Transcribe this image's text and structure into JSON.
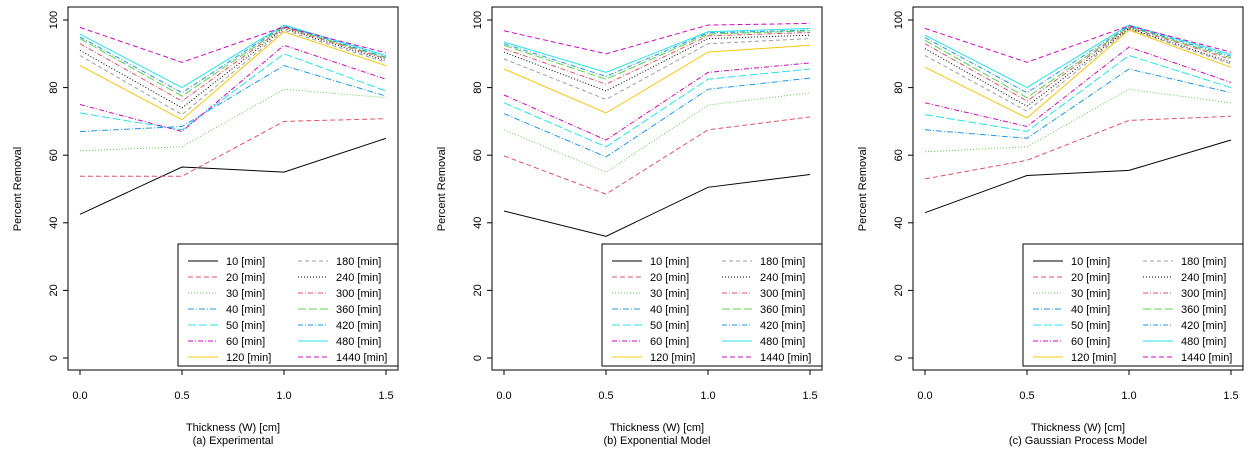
{
  "chart_data": [
    {
      "type": "line",
      "caption": "(a) Experimental",
      "xlabel": "Thickness (W) [cm]",
      "ylabel": "Percent Removal",
      "x": [
        0.0,
        0.5,
        1.0,
        1.5
      ],
      "x_ticks": [
        "0.0",
        "0.5",
        "1.0",
        "1.5"
      ],
      "y_ticks": [
        "0",
        "20",
        "40",
        "60",
        "80",
        "100"
      ],
      "xlim": [
        0,
        1.5
      ],
      "ylim": [
        0,
        100
      ],
      "legend_position": "bottom-right",
      "series": [
        {
          "name": "10 [min]",
          "values": [
            42.5,
            56.5,
            55.0,
            65.0
          ],
          "color": "#000000"
        },
        {
          "name": "20 [min]",
          "values": [
            53.8,
            53.8,
            70.0,
            70.8
          ],
          "color": "#DF536B"
        },
        {
          "name": "30 [min]",
          "values": [
            61.3,
            62.5,
            79.5,
            77.0
          ],
          "color": "#61D04F"
        },
        {
          "name": "40 [min]",
          "values": [
            67.0,
            68.5,
            86.5,
            77.5
          ],
          "color": "#2297E6"
        },
        {
          "name": "50 [min]",
          "values": [
            72.5,
            67.5,
            90.0,
            79.0
          ],
          "color": "#28E2E5"
        },
        {
          "name": "60 [min]",
          "values": [
            75.0,
            67.0,
            92.5,
            82.5
          ],
          "color": "#CD0BBC"
        },
        {
          "name": "120 [min]",
          "values": [
            86.5,
            70.5,
            96.5,
            86.5
          ],
          "color": "#F5C710"
        },
        {
          "name": "180 [min]",
          "values": [
            89.5,
            72.0,
            97.0,
            87.5
          ],
          "color": "#9E9E9E"
        },
        {
          "name": "240 [min]",
          "values": [
            91.0,
            74.0,
            97.5,
            88.0
          ],
          "color": "#000000"
        },
        {
          "name": "300 [min]",
          "values": [
            93.0,
            76.0,
            97.8,
            88.5
          ],
          "color": "#DF536B"
        },
        {
          "name": "360 [min]",
          "values": [
            94.5,
            77.5,
            98.0,
            88.8
          ],
          "color": "#61D04F"
        },
        {
          "name": "420 [min]",
          "values": [
            95.0,
            78.5,
            98.3,
            89.0
          ],
          "color": "#2297E6"
        },
        {
          "name": "480 [min]",
          "values": [
            95.8,
            80.0,
            98.5,
            89.5
          ],
          "color": "#28E2E5"
        },
        {
          "name": "1440 [min]",
          "values": [
            97.8,
            87.5,
            98.0,
            90.3
          ],
          "color": "#CD0BBC"
        }
      ]
    },
    {
      "type": "line",
      "caption": "(b) Exponential Model",
      "xlabel": "Thickness (W) [cm]",
      "ylabel": "Percent Removal",
      "x": [
        0.0,
        0.5,
        1.0,
        1.5
      ],
      "x_ticks": [
        "0.0",
        "0.5",
        "1.0",
        "1.5"
      ],
      "y_ticks": [
        "0",
        "20",
        "40",
        "60",
        "80",
        "100"
      ],
      "xlim": [
        0,
        1.5
      ],
      "ylim": [
        0,
        100
      ],
      "legend_position": "bottom-right",
      "series": [
        {
          "name": "10 [min]",
          "values": [
            43.5,
            36.0,
            50.5,
            54.3
          ],
          "color": "#000000"
        },
        {
          "name": "20 [min]",
          "values": [
            59.8,
            48.5,
            67.5,
            71.3
          ],
          "color": "#DF536B"
        },
        {
          "name": "30 [min]",
          "values": [
            67.5,
            55.0,
            74.8,
            78.5
          ],
          "color": "#61D04F"
        },
        {
          "name": "40 [min]",
          "values": [
            72.3,
            59.5,
            79.5,
            82.8
          ],
          "color": "#2297E6"
        },
        {
          "name": "50 [min]",
          "values": [
            75.5,
            62.5,
            82.5,
            85.5
          ],
          "color": "#28E2E5"
        },
        {
          "name": "60 [min]",
          "values": [
            77.8,
            64.5,
            84.5,
            87.3
          ],
          "color": "#CD0BBC"
        },
        {
          "name": "120 [min]",
          "values": [
            85.5,
            72.5,
            90.5,
            92.5
          ],
          "color": "#F5C710"
        },
        {
          "name": "180 [min]",
          "values": [
            88.5,
            76.5,
            93.0,
            94.5
          ],
          "color": "#9E9E9E"
        },
        {
          "name": "240 [min]",
          "values": [
            90.5,
            79.0,
            94.5,
            95.5
          ],
          "color": "#000000"
        },
        {
          "name": "300 [min]",
          "values": [
            91.5,
            81.0,
            95.3,
            96.3
          ],
          "color": "#DF536B"
        },
        {
          "name": "360 [min]",
          "values": [
            92.5,
            82.5,
            95.8,
            96.8
          ],
          "color": "#61D04F"
        },
        {
          "name": "420 [min]",
          "values": [
            93.0,
            83.3,
            96.2,
            97.0
          ],
          "color": "#2297E6"
        },
        {
          "name": "480 [min]",
          "values": [
            93.5,
            84.5,
            96.5,
            97.5
          ],
          "color": "#28E2E5"
        },
        {
          "name": "1440 [min]",
          "values": [
            96.8,
            90.0,
            98.5,
            99.0
          ],
          "color": "#CD0BBC"
        }
      ]
    },
    {
      "type": "line",
      "caption": "(c) Gaussian Process Model",
      "xlabel": "Thickness (W) [cm]",
      "ylabel": "Percent Removal",
      "x": [
        0.0,
        0.5,
        1.0,
        1.5
      ],
      "x_ticks": [
        "0.0",
        "0.5",
        "1.0",
        "1.5"
      ],
      "y_ticks": [
        "0",
        "20",
        "40",
        "60",
        "80",
        "100"
      ],
      "xlim": [
        0,
        1.5
      ],
      "ylim": [
        0,
        100
      ],
      "legend_position": "bottom-right",
      "series": [
        {
          "name": "10 [min]",
          "values": [
            43.0,
            54.0,
            55.5,
            64.5
          ],
          "color": "#000000"
        },
        {
          "name": "20 [min]",
          "values": [
            53.0,
            58.5,
            70.3,
            71.5
          ],
          "color": "#DF536B"
        },
        {
          "name": "30 [min]",
          "values": [
            61.0,
            62.5,
            79.5,
            75.5
          ],
          "color": "#61D04F"
        },
        {
          "name": "40 [min]",
          "values": [
            67.5,
            65.0,
            85.5,
            78.5
          ],
          "color": "#2297E6"
        },
        {
          "name": "50 [min]",
          "values": [
            72.0,
            67.0,
            89.5,
            80.0
          ],
          "color": "#28E2E5"
        },
        {
          "name": "60 [min]",
          "values": [
            75.5,
            68.5,
            92.0,
            81.5
          ],
          "color": "#CD0BBC"
        },
        {
          "name": "120 [min]",
          "values": [
            86.0,
            71.0,
            97.0,
            86.0
          ],
          "color": "#F5C710"
        },
        {
          "name": "180 [min]",
          "values": [
            89.5,
            73.0,
            97.3,
            87.0
          ],
          "color": "#9E9E9E"
        },
        {
          "name": "240 [min]",
          "values": [
            91.5,
            74.5,
            97.5,
            87.5
          ],
          "color": "#000000"
        },
        {
          "name": "300 [min]",
          "values": [
            93.0,
            76.0,
            97.8,
            88.3
          ],
          "color": "#DF536B"
        },
        {
          "name": "360 [min]",
          "values": [
            94.0,
            77.0,
            98.0,
            88.8
          ],
          "color": "#61D04F"
        },
        {
          "name": "420 [min]",
          "values": [
            94.8,
            78.5,
            98.2,
            89.3
          ],
          "color": "#2297E6"
        },
        {
          "name": "480 [min]",
          "values": [
            95.5,
            80.0,
            98.5,
            89.8
          ],
          "color": "#28E2E5"
        },
        {
          "name": "1440 [min]",
          "values": [
            97.5,
            87.5,
            98.3,
            90.5
          ],
          "color": "#CD0BBC"
        }
      ]
    }
  ]
}
